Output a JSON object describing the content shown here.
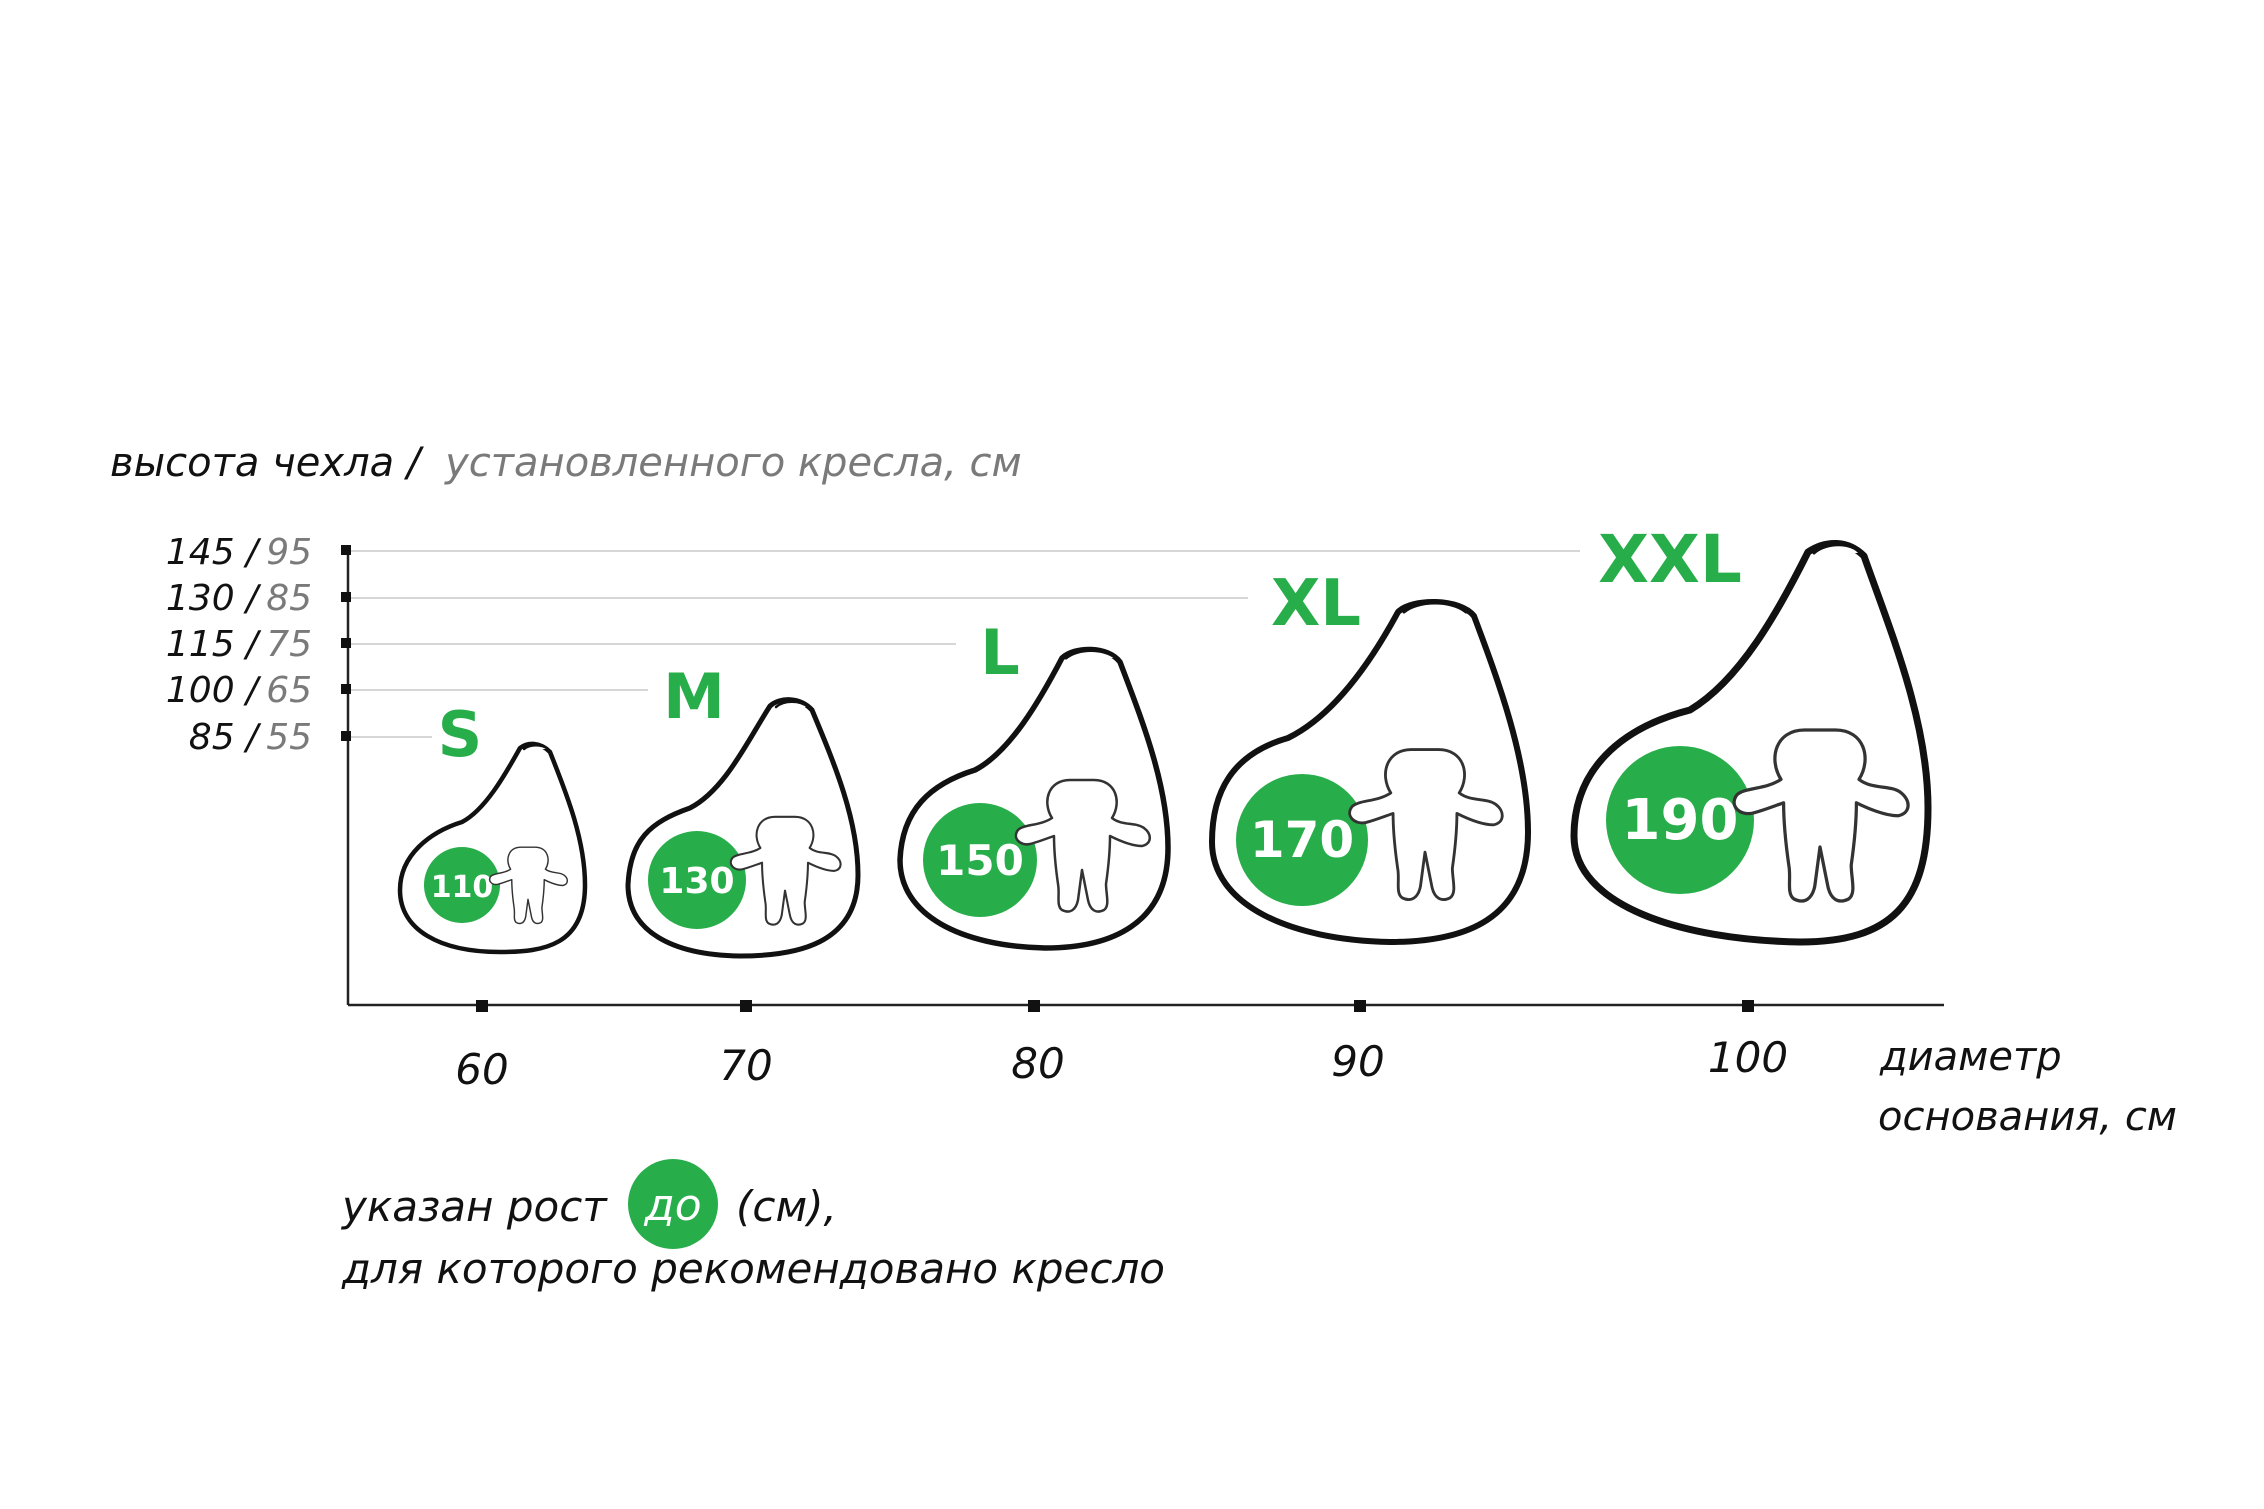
{
  "y_axis": {
    "title_main": "высота чехла /",
    "title_gray": "установленного кресла, см",
    "ticks": [
      {
        "cover": "145 /",
        "installed": "95"
      },
      {
        "cover": "130 /",
        "installed": "85"
      },
      {
        "cover": "115 /",
        "installed": "75"
      },
      {
        "cover": "100 /",
        "installed": "65"
      },
      {
        "cover": "85 /",
        "installed": "55"
      }
    ]
  },
  "x_axis": {
    "title_line1": "диаметр",
    "title_line2": "основания, см",
    "ticks": [
      "60",
      "70",
      "80",
      "90",
      "100"
    ]
  },
  "sizes": [
    {
      "label": "S",
      "diameter": 60,
      "cover_height": 85,
      "installed_height": 55,
      "max_height": "110"
    },
    {
      "label": "M",
      "diameter": 70,
      "cover_height": 100,
      "installed_height": 65,
      "max_height": "130"
    },
    {
      "label": "L",
      "diameter": 80,
      "cover_height": 115,
      "installed_height": 75,
      "max_height": "150"
    },
    {
      "label": "XL",
      "diameter": 90,
      "cover_height": 130,
      "installed_height": 85,
      "max_height": "170"
    },
    {
      "label": "XXL",
      "diameter": 100,
      "cover_height": 145,
      "installed_height": 95,
      "max_height": "190"
    }
  ],
  "legend": {
    "line1_before": "указан рост",
    "badge": "до",
    "line1_after": "(см),",
    "line2": "для которого рекомендовано кресло"
  },
  "colors": {
    "accent": "#27ae4a",
    "ink": "#111111",
    "secondary": "#7a7a7a"
  }
}
